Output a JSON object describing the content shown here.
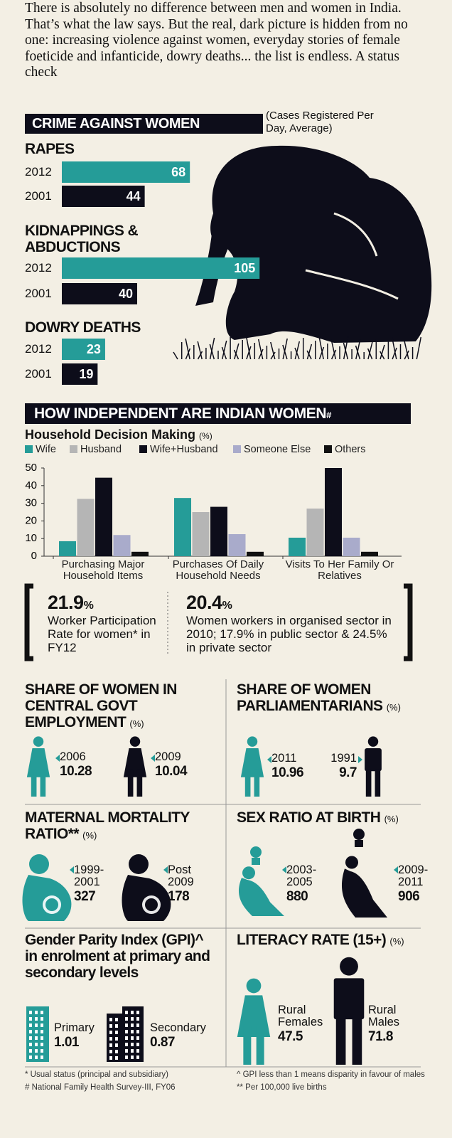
{
  "intro": "There is absolutely no difference between men and women in India. That’s what the law says. But the real, dark picture is hidden from no one: increasing violence against women, everyday stories of female foeticide and infanticide, dowry deaths... the list is endless. A status check",
  "chart_data": [
    {
      "type": "hbar",
      "title": "CRIME AGAINST WOMEN",
      "subtitle": "(Cases Registered Per Day, Average)",
      "categories": [
        "RAPES",
        "KIDNAPPINGS & ABDUCTIONS",
        "DOWRY DEATHS"
      ],
      "series": [
        {
          "name": "2012",
          "color": "#259c98",
          "values": [
            68,
            105,
            23
          ]
        },
        {
          "name": "2001",
          "color": "#0d0d1a",
          "values": [
            44,
            40,
            19
          ]
        }
      ]
    },
    {
      "type": "bar",
      "title": "Household Decision Making",
      "unit": "(%)",
      "categories": [
        "Purchasing Major Household Items",
        "Purchases Of Daily Household Needs",
        "Visits To Her Family Or Relatives"
      ],
      "series": [
        {
          "name": "Wife",
          "color": "#259c98",
          "values": [
            8.5,
            33,
            10.5
          ]
        },
        {
          "name": "Husband",
          "color": "#b5b5b5",
          "values": [
            32.5,
            25,
            27
          ]
        },
        {
          "name": "Wife+Husband",
          "color": "#0d0d1a",
          "values": [
            44.5,
            28,
            50
          ]
        },
        {
          "name": "Someone Else",
          "color": "#a9abcb",
          "values": [
            12,
            12.5,
            10.5
          ]
        },
        {
          "name": "Others",
          "color": "#111111",
          "values": [
            2.5,
            2.5,
            2.5
          ]
        }
      ],
      "ylim": [
        0,
        50
      ],
      "yticks": [
        0,
        10,
        20,
        30,
        40,
        50
      ]
    }
  ],
  "section_title": "HOW INDEPENDENT ARE INDIAN WOMEN",
  "section_mark": "#",
  "stats": [
    {
      "value": 21.9,
      "unit": "%",
      "text": "Worker Participation Rate for women* in FY12"
    },
    {
      "value": 20.4,
      "unit": "%",
      "text": "Women workers in organised sector in 2010; 17.9% in public sector & 24.5% in private sector"
    }
  ],
  "panels": [
    {
      "title": "SHARE OF WOMEN IN CENTRAL GOVT EMPLOYMENT",
      "unit": "(%)",
      "items": [
        {
          "label": "2006",
          "value": 10.28
        },
        {
          "label": "2009",
          "value": 10.04
        }
      ]
    },
    {
      "title": "SHARE OF WOMEN PARLIAMENTARIANS",
      "unit": "(%)",
      "items": [
        {
          "label": "2011",
          "value": 10.96
        },
        {
          "label": "1991",
          "value": 9.7
        }
      ]
    },
    {
      "title": "MATERNAL MORTALITY RATIO**",
      "unit": "(%)",
      "items": [
        {
          "label": "1999-2001",
          "value": 327
        },
        {
          "label": "Post 2009",
          "value": 178
        }
      ]
    },
    {
      "title": "SEX RATIO AT BIRTH",
      "unit": "(%)",
      "items": [
        {
          "label": "2003-2005",
          "value": 880
        },
        {
          "label": "2009-2011",
          "value": 906
        }
      ]
    },
    {
      "title": "Gender Parity Index (GPI)^ in enrolment at primary and secondary levels",
      "items": [
        {
          "label": "Primary",
          "value": 1.01
        },
        {
          "label": "Secondary",
          "value": 0.87
        }
      ]
    },
    {
      "title": "LITERACY RATE (15+)",
      "unit": "(%)",
      "items": [
        {
          "label": "Rural Females",
          "value": 47.5
        },
        {
          "label": "Rural Males",
          "value": 71.8
        }
      ]
    }
  ],
  "footnotes": [
    "* Usual status (principal and subsidiary)",
    "# National Family Health Survey-III, FY06",
    "^ GPI less than 1 means disparity in favour of males",
    "** Per 100,000 live births"
  ]
}
